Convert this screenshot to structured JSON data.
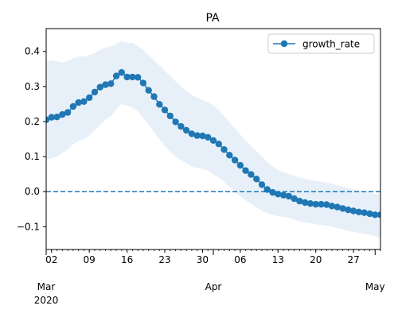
{
  "chart_data": {
    "type": "line",
    "title": "PA",
    "xlabel": "",
    "ylabel": "",
    "x": [
      "2020-03-01",
      "2020-03-02",
      "2020-03-03",
      "2020-03-04",
      "2020-03-05",
      "2020-03-06",
      "2020-03-07",
      "2020-03-08",
      "2020-03-09",
      "2020-03-10",
      "2020-03-11",
      "2020-03-12",
      "2020-03-13",
      "2020-03-14",
      "2020-03-15",
      "2020-03-16",
      "2020-03-17",
      "2020-03-18",
      "2020-03-19",
      "2020-03-20",
      "2020-03-21",
      "2020-03-22",
      "2020-03-23",
      "2020-03-24",
      "2020-03-25",
      "2020-03-26",
      "2020-03-27",
      "2020-03-28",
      "2020-03-29",
      "2020-03-30",
      "2020-03-31",
      "2020-04-01",
      "2020-04-02",
      "2020-04-03",
      "2020-04-04",
      "2020-04-05",
      "2020-04-06",
      "2020-04-07",
      "2020-04-08",
      "2020-04-09",
      "2020-04-10",
      "2020-04-11",
      "2020-04-12",
      "2020-04-13",
      "2020-04-14",
      "2020-04-15",
      "2020-04-16",
      "2020-04-17",
      "2020-04-18",
      "2020-04-19",
      "2020-04-20",
      "2020-04-21",
      "2020-04-22",
      "2020-04-23",
      "2020-04-24",
      "2020-04-25",
      "2020-04-26",
      "2020-04-27",
      "2020-04-28",
      "2020-04-29",
      "2020-04-30",
      "2020-05-01",
      "2020-05-02"
    ],
    "series": [
      {
        "name": "growth_rate",
        "color": "#1f77b4",
        "values": [
          0.205,
          0.212,
          0.213,
          0.22,
          0.226,
          0.243,
          0.254,
          0.257,
          0.268,
          0.284,
          0.298,
          0.305,
          0.308,
          0.33,
          0.34,
          0.327,
          0.327,
          0.326,
          0.31,
          0.289,
          0.271,
          0.249,
          0.233,
          0.216,
          0.199,
          0.186,
          0.175,
          0.165,
          0.16,
          0.159,
          0.155,
          0.146,
          0.136,
          0.12,
          0.104,
          0.09,
          0.075,
          0.06,
          0.049,
          0.036,
          0.02,
          0.006,
          -0.002,
          -0.007,
          -0.01,
          -0.013,
          -0.02,
          -0.027,
          -0.031,
          -0.034,
          -0.036,
          -0.036,
          -0.037,
          -0.041,
          -0.044,
          -0.048,
          -0.052,
          -0.055,
          -0.058,
          -0.06,
          -0.063,
          -0.066,
          -0.066
        ]
      }
    ],
    "band": {
      "color": "#cfe2f3",
      "lower": [
        0.09,
        0.095,
        0.1,
        0.11,
        0.12,
        0.135,
        0.145,
        0.15,
        0.16,
        0.175,
        0.19,
        0.205,
        0.215,
        0.235,
        0.25,
        0.245,
        0.24,
        0.23,
        0.21,
        0.19,
        0.17,
        0.15,
        0.13,
        0.115,
        0.1,
        0.09,
        0.08,
        0.072,
        0.068,
        0.065,
        0.06,
        0.05,
        0.04,
        0.027,
        0.013,
        0.0,
        -0.013,
        -0.025,
        -0.035,
        -0.045,
        -0.055,
        -0.062,
        -0.067,
        -0.07,
        -0.072,
        -0.075,
        -0.08,
        -0.085,
        -0.088,
        -0.09,
        -0.093,
        -0.095,
        -0.097,
        -0.1,
        -0.104,
        -0.108,
        -0.112,
        -0.115,
        -0.118,
        -0.12,
        -0.123,
        -0.127,
        -0.132
      ],
      "upper": [
        0.37,
        0.375,
        0.372,
        0.368,
        0.373,
        0.38,
        0.385,
        0.385,
        0.39,
        0.395,
        0.405,
        0.41,
        0.415,
        0.42,
        0.43,
        0.425,
        0.425,
        0.415,
        0.405,
        0.39,
        0.375,
        0.36,
        0.345,
        0.33,
        0.315,
        0.3,
        0.288,
        0.276,
        0.268,
        0.262,
        0.255,
        0.245,
        0.233,
        0.215,
        0.198,
        0.18,
        0.163,
        0.145,
        0.13,
        0.115,
        0.1,
        0.085,
        0.072,
        0.062,
        0.055,
        0.05,
        0.045,
        0.04,
        0.036,
        0.033,
        0.03,
        0.028,
        0.026,
        0.022,
        0.018,
        0.014,
        0.01,
        0.006,
        0.003,
        0.0,
        -0.003,
        -0.007,
        -0.008
      ]
    },
    "reference_line": {
      "y": 0.0,
      "style": "dashed",
      "color": "#1f77b4"
    },
    "xlim": [
      "2020-03-01",
      "2020-05-02"
    ],
    "ylim": [
      -0.165,
      0.465
    ],
    "yticks": [
      -0.1,
      0.0,
      0.1,
      0.2,
      0.3,
      0.4
    ],
    "ytick_labels": [
      "−0.1",
      "0.0",
      "0.1",
      "0.2",
      "0.3",
      "0.4"
    ],
    "xticks_minor": [
      {
        "date": "2020-03-02",
        "label": "02"
      },
      {
        "date": "2020-03-09",
        "label": "09"
      },
      {
        "date": "2020-03-16",
        "label": "16"
      },
      {
        "date": "2020-03-23",
        "label": "23"
      },
      {
        "date": "2020-03-30",
        "label": "30"
      },
      {
        "date": "2020-04-06",
        "label": "06"
      },
      {
        "date": "2020-04-13",
        "label": "13"
      },
      {
        "date": "2020-04-20",
        "label": "20"
      },
      {
        "date": "2020-04-27",
        "label": "27"
      }
    ],
    "xticks_major": [
      {
        "date": "2020-03-01",
        "label": "Mar",
        "sublabel": "2020"
      },
      {
        "date": "2020-04-01",
        "label": "Apr",
        "sublabel": ""
      },
      {
        "date": "2020-05-01",
        "label": "May",
        "sublabel": ""
      }
    ],
    "legend": {
      "position": "top-right",
      "entries": [
        "growth_rate"
      ]
    },
    "grid": false
  }
}
